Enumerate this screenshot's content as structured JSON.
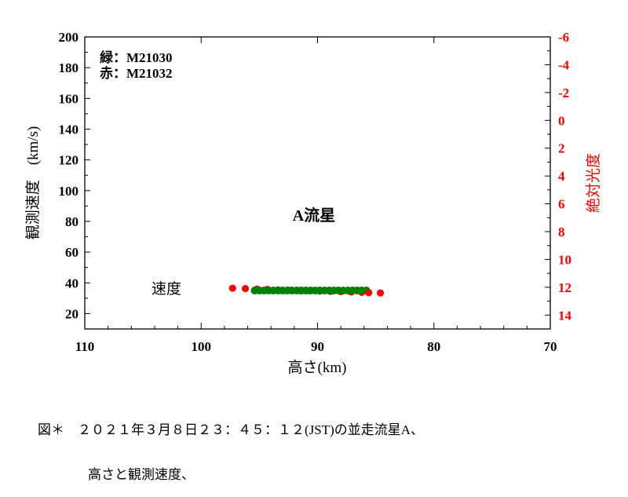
{
  "chart_data": {
    "type": "scatter",
    "title": "A流星",
    "xlabel": "高さ(km)",
    "ylabel": "観測速度 (km/s)",
    "y2label": "絶対光度",
    "xlim": [
      110,
      70
    ],
    "ylim": [
      10,
      200
    ],
    "y2lim": [
      -6,
      15
    ],
    "xticks": [
      110,
      100,
      90,
      80,
      70
    ],
    "yticks": [
      20,
      40,
      60,
      80,
      100,
      120,
      140,
      160,
      180,
      200
    ],
    "y2ticks": [
      -6,
      -4,
      -2,
      0,
      2,
      4,
      6,
      8,
      10,
      12,
      14
    ],
    "legend": [
      "緑：M21030",
      "赤：M21032"
    ],
    "annotations": [
      "A流星",
      "速度"
    ],
    "grid": false,
    "series": [
      {
        "name": "M21030",
        "color": "#008000",
        "x": [
          95.4,
          95.0,
          94.6,
          94.2,
          93.8,
          93.4,
          93.0,
          92.6,
          92.2,
          91.8,
          91.4,
          91.0,
          90.6,
          90.2,
          89.8,
          89.4,
          89.0,
          88.6,
          88.2,
          87.8,
          87.4,
          87.0,
          86.6,
          86.2,
          85.8
        ],
        "y": [
          35.0,
          35.0,
          35.0,
          35.0,
          35.0,
          35.0,
          35.0,
          35.0,
          35.0,
          35.0,
          35.0,
          35.0,
          35.0,
          35.0,
          35.0,
          35.0,
          35.0,
          35.0,
          35.0,
          35.0,
          35.0,
          35.0,
          35.0,
          35.0,
          35.0
        ]
      },
      {
        "name": "M21032",
        "color": "#ff0000",
        "x": [
          97.3,
          96.2,
          95.2,
          94.3,
          93.4,
          92.5,
          91.6,
          90.7,
          89.8,
          88.9,
          88.0,
          87.1,
          86.2,
          85.6,
          84.6
        ],
        "y": [
          36.5,
          36.3,
          36.0,
          35.8,
          35.5,
          35.3,
          35.0,
          34.8,
          34.6,
          34.4,
          34.2,
          34.0,
          33.8,
          33.6,
          33.4
        ]
      }
    ]
  },
  "legend": {
    "line1": "緑：M21030",
    "line2": "赤：M21032"
  },
  "annotations": {
    "title": "A流星",
    "speed_label": "速度"
  },
  "axes": {
    "xlabel": "高さ(km)",
    "ylabel": "観測速度　(km/s)",
    "y2label": "絶対光度"
  },
  "caption": {
    "line1": "図＊　２０２１年３月８日２３：４５：１２(JST)の並走流星A、",
    "line2": "高さと観測速度、"
  }
}
